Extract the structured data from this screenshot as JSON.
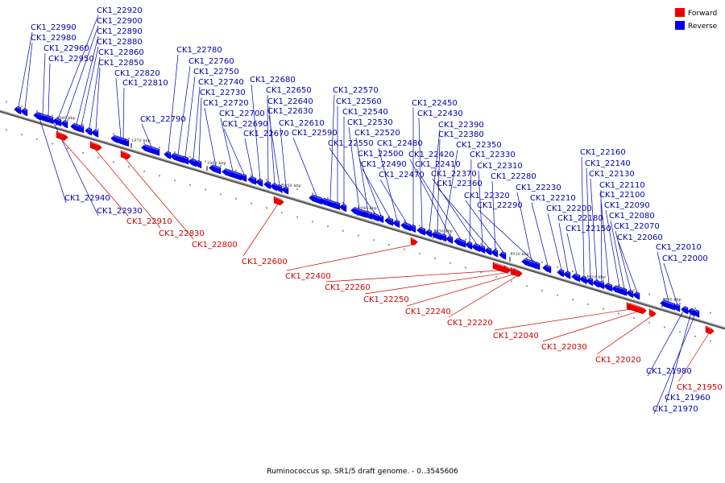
{
  "caption": "Ruminococcus sp. SR1/5 draft genome. - 0..3545606",
  "legend": [
    {
      "label": "Forward",
      "color": "#ee0000"
    },
    {
      "label": "Reverse",
      "color": "#0000ee"
    }
  ],
  "colors": {
    "forward": "#ee0000",
    "forward_text": "#cc0000",
    "reverse": "#0000ee",
    "reverse_text": "#0000aa",
    "backbone": "#808080"
  },
  "scale_ticks": [
    {
      "label": "1980 kbp",
      "kbp": 1980
    },
    {
      "label": "1970 kbp",
      "kbp": 1970
    },
    {
      "label": "1960 kbp",
      "kbp": 1960
    },
    {
      "label": "1950 kbp",
      "kbp": 1950
    },
    {
      "label": "1940 kbp",
      "kbp": 1940
    },
    {
      "label": "1930 kbp",
      "kbp": 1930
    },
    {
      "label": "1920 kbp",
      "kbp": 1920
    },
    {
      "label": "1910 kbp",
      "kbp": 1910
    },
    {
      "label": "1900 kbp",
      "kbp": 1900
    }
  ],
  "genes": [
    {
      "id": "CK1_22990",
      "strand": "reverse"
    },
    {
      "id": "CK1_22980",
      "strand": "reverse"
    },
    {
      "id": "CK1_22960",
      "strand": "reverse"
    },
    {
      "id": "CK1_22950",
      "strand": "reverse"
    },
    {
      "id": "CK1_22920",
      "strand": "reverse"
    },
    {
      "id": "CK1_22900",
      "strand": "reverse"
    },
    {
      "id": "CK1_22890",
      "strand": "reverse"
    },
    {
      "id": "CK1_22880",
      "strand": "reverse"
    },
    {
      "id": "CK1_22860",
      "strand": "reverse"
    },
    {
      "id": "CK1_22850",
      "strand": "reverse"
    },
    {
      "id": "CK1_22820",
      "strand": "reverse"
    },
    {
      "id": "CK1_22810",
      "strand": "reverse"
    },
    {
      "id": "CK1_22790",
      "strand": "reverse"
    },
    {
      "id": "CK1_22780",
      "strand": "reverse"
    },
    {
      "id": "CK1_22760",
      "strand": "reverse"
    },
    {
      "id": "CK1_22750",
      "strand": "reverse"
    },
    {
      "id": "CK1_22740",
      "strand": "reverse"
    },
    {
      "id": "CK1_22730",
      "strand": "reverse"
    },
    {
      "id": "CK1_22720",
      "strand": "reverse"
    },
    {
      "id": "CK1_22700",
      "strand": "reverse"
    },
    {
      "id": "CK1_22690",
      "strand": "reverse"
    },
    {
      "id": "CK1_22670",
      "strand": "reverse"
    },
    {
      "id": "CK1_22680",
      "strand": "reverse"
    },
    {
      "id": "CK1_22650",
      "strand": "reverse"
    },
    {
      "id": "CK1_22640",
      "strand": "reverse"
    },
    {
      "id": "CK1_22630",
      "strand": "reverse"
    },
    {
      "id": "CK1_22610",
      "strand": "reverse"
    },
    {
      "id": "CK1_22590",
      "strand": "reverse"
    },
    {
      "id": "CK1_22570",
      "strand": "reverse"
    },
    {
      "id": "CK1_22560",
      "strand": "reverse"
    },
    {
      "id": "CK1_22540",
      "strand": "reverse"
    },
    {
      "id": "CK1_22530",
      "strand": "reverse"
    },
    {
      "id": "CK1_22520",
      "strand": "reverse"
    },
    {
      "id": "CK1_22550",
      "strand": "reverse"
    },
    {
      "id": "CK1_22500",
      "strand": "reverse"
    },
    {
      "id": "CK1_22490",
      "strand": "reverse"
    },
    {
      "id": "CK1_22480",
      "strand": "reverse"
    },
    {
      "id": "CK1_22470",
      "strand": "reverse"
    },
    {
      "id": "CK1_22450",
      "strand": "reverse"
    },
    {
      "id": "CK1_22430",
      "strand": "reverse"
    },
    {
      "id": "CK1_22390",
      "strand": "reverse"
    },
    {
      "id": "CK1_22380",
      "strand": "reverse"
    },
    {
      "id": "CK1_22350",
      "strand": "reverse"
    },
    {
      "id": "CK1_22420",
      "strand": "reverse"
    },
    {
      "id": "CK1_22410",
      "strand": "reverse"
    },
    {
      "id": "CK1_22330",
      "strand": "reverse"
    },
    {
      "id": "CK1_22370",
      "strand": "reverse"
    },
    {
      "id": "CK1_22310",
      "strand": "reverse"
    },
    {
      "id": "CK1_22360",
      "strand": "reverse"
    },
    {
      "id": "CK1_22280",
      "strand": "reverse"
    },
    {
      "id": "CK1_22320",
      "strand": "reverse"
    },
    {
      "id": "CK1_22230",
      "strand": "reverse"
    },
    {
      "id": "CK1_22290",
      "strand": "reverse"
    },
    {
      "id": "CK1_22210",
      "strand": "reverse"
    },
    {
      "id": "CK1_22200",
      "strand": "reverse"
    },
    {
      "id": "CK1_22180",
      "strand": "reverse"
    },
    {
      "id": "CK1_22150",
      "strand": "reverse"
    },
    {
      "id": "CK1_22160",
      "strand": "reverse"
    },
    {
      "id": "CK1_22140",
      "strand": "reverse"
    },
    {
      "id": "CK1_22130",
      "strand": "reverse"
    },
    {
      "id": "CK1_22110",
      "strand": "reverse"
    },
    {
      "id": "CK1_22100",
      "strand": "reverse"
    },
    {
      "id": "CK1_22090",
      "strand": "reverse"
    },
    {
      "id": "CK1_22080",
      "strand": "reverse"
    },
    {
      "id": "CK1_22070",
      "strand": "reverse"
    },
    {
      "id": "CK1_22060",
      "strand": "reverse"
    },
    {
      "id": "CK1_22010",
      "strand": "reverse"
    },
    {
      "id": "CK1_22000",
      "strand": "reverse"
    },
    {
      "id": "CK1_22940",
      "strand": "reverse"
    },
    {
      "id": "CK1_22930",
      "strand": "reverse"
    },
    {
      "id": "CK1_22910",
      "strand": "forward"
    },
    {
      "id": "CK1_22830",
      "strand": "forward"
    },
    {
      "id": "CK1_22800",
      "strand": "forward"
    },
    {
      "id": "CK1_22600",
      "strand": "forward"
    },
    {
      "id": "CK1_22400",
      "strand": "forward"
    },
    {
      "id": "CK1_22260",
      "strand": "forward"
    },
    {
      "id": "CK1_22250",
      "strand": "forward"
    },
    {
      "id": "CK1_22240",
      "strand": "forward"
    },
    {
      "id": "CK1_22220",
      "strand": "forward"
    },
    {
      "id": "CK1_22040",
      "strand": "forward"
    },
    {
      "id": "CK1_22030",
      "strand": "forward"
    },
    {
      "id": "CK1_22020",
      "strand": "forward"
    },
    {
      "id": "CK1_21980",
      "strand": "reverse"
    },
    {
      "id": "CK1_21950",
      "strand": "forward"
    },
    {
      "id": "CK1_21960",
      "strand": "reverse"
    },
    {
      "id": "CK1_21970",
      "strand": "reverse"
    }
  ]
}
